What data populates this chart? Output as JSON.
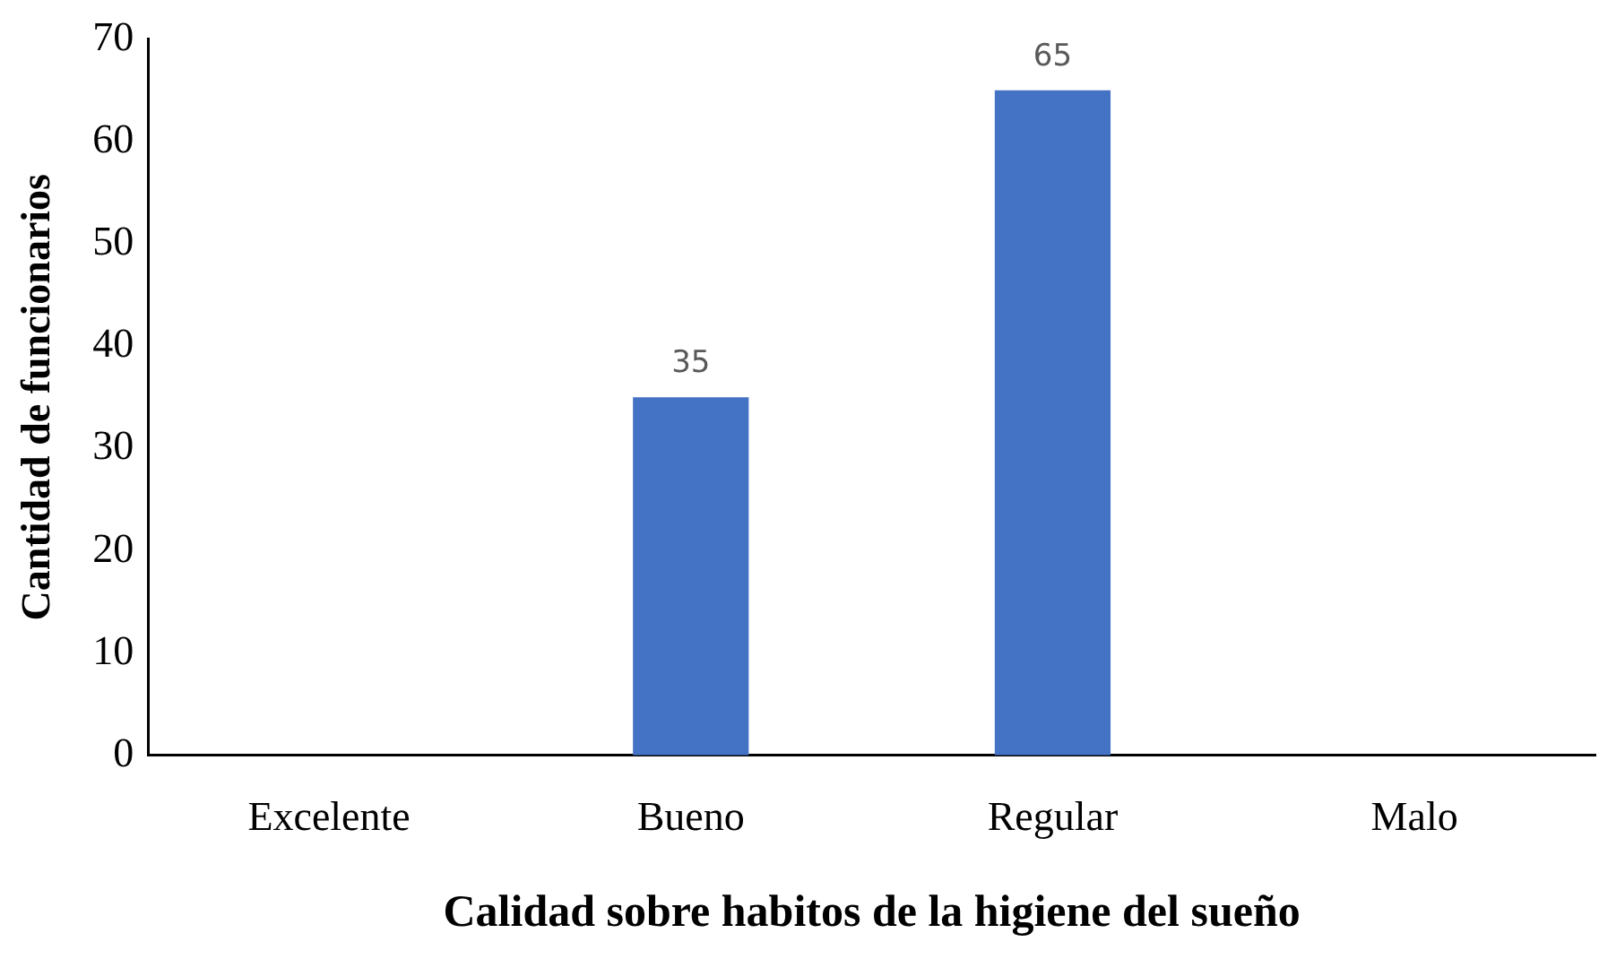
{
  "chart_data": {
    "type": "bar",
    "xlabel": "Calidad sobre habitos de la higiene del sueño",
    "ylabel": "Cantidad de funcionarios",
    "categories": [
      "Excelente",
      "Bueno",
      "Regular",
      "Malo"
    ],
    "values": [
      0,
      35,
      65,
      0
    ],
    "value_labels": [
      null,
      "35",
      "65",
      null
    ],
    "color": "#4472c4",
    "ylim": [
      0,
      70
    ],
    "yticks": [
      0,
      10,
      20,
      30,
      40,
      50,
      60,
      70
    ],
    "grid": false,
    "legend": false
  }
}
